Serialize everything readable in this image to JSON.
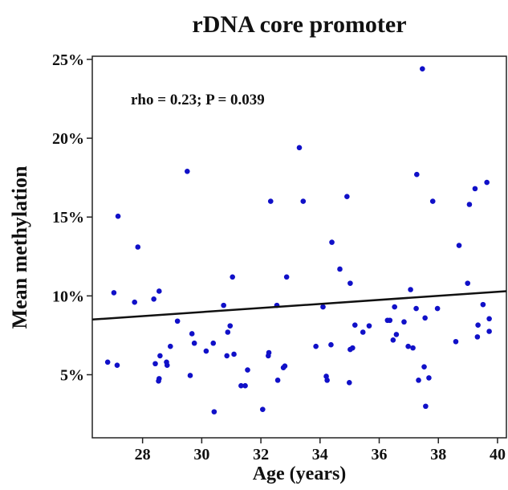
{
  "chart_data": {
    "type": "scatter",
    "title": "rDNA core promoter",
    "xlabel": "Age  (years)",
    "ylabel": "Mean methylation",
    "annotation": "rho = 0.23;  P = 0.039",
    "color": "#1010c8",
    "xlim": [
      26.3,
      40.3
    ],
    "ylim": [
      1,
      25.2
    ],
    "xticks": [
      28,
      30,
      32,
      34,
      36,
      38,
      40
    ],
    "yticks": [
      {
        "value": 5,
        "label": "5%"
      },
      {
        "value": 10,
        "label": "10%"
      },
      {
        "value": 15,
        "label": "15%"
      },
      {
        "value": 20,
        "label": "20%"
      },
      {
        "value": 25,
        "label": "25%"
      }
    ],
    "fit_line": {
      "x": [
        26.3,
        40.3
      ],
      "y": [
        8.5,
        10.3
      ]
    },
    "x": [
      26.82,
      27.03,
      27.14,
      27.17,
      27.84,
      27.73,
      28.38,
      28.43,
      28.54,
      28.56,
      28.56,
      28.59,
      28.81,
      28.83,
      28.94,
      29.18,
      29.51,
      29.61,
      29.67,
      29.75,
      30.15,
      30.39,
      30.42,
      30.74,
      30.85,
      30.88,
      30.96,
      31.04,
      31.09,
      31.33,
      31.47,
      31.55,
      32.06,
      32.27,
      32.33,
      32.25,
      32.54,
      32.57,
      32.76,
      32.81,
      32.87,
      33.3,
      33.43,
      33.86,
      34.1,
      34.21,
      34.24,
      34.37,
      34.4,
      34.67,
      34.91,
      34.99,
      35.02,
      35.02,
      35.1,
      35.18,
      35.45,
      35.66,
      36.28,
      36.36,
      36.47,
      36.52,
      36.58,
      36.84,
      36.98,
      37.06,
      37.14,
      37.25,
      37.27,
      37.33,
      37.46,
      37.52,
      37.55,
      37.57,
      37.68,
      37.81,
      37.97,
      38.59,
      38.7,
      38.99,
      39.05,
      39.24,
      39.32,
      39.34,
      39.51,
      39.64,
      39.72,
      39.72
    ],
    "values": [
      5.8,
      10.2,
      5.6,
      15.05,
      13.1,
      9.6,
      9.8,
      5.7,
      4.6,
      10.3,
      4.75,
      6.2,
      5.8,
      5.6,
      6.8,
      8.4,
      17.9,
      4.95,
      7.6,
      7.0,
      6.5,
      7.0,
      2.65,
      9.4,
      6.2,
      7.7,
      8.1,
      11.2,
      6.3,
      4.3,
      4.3,
      5.3,
      2.8,
      6.4,
      16.0,
      6.2,
      9.4,
      4.65,
      5.45,
      5.55,
      11.2,
      19.4,
      16.0,
      6.8,
      9.3,
      4.9,
      4.65,
      6.9,
      13.4,
      11.7,
      16.3,
      4.5,
      6.6,
      10.8,
      6.7,
      8.15,
      7.7,
      8.1,
      8.45,
      8.45,
      7.2,
      9.3,
      7.55,
      8.35,
      6.8,
      10.4,
      6.7,
      9.2,
      17.7,
      4.65,
      24.4,
      5.5,
      8.6,
      3.0,
      4.8,
      16.0,
      9.2,
      7.1,
      13.2,
      10.8,
      15.8,
      16.8,
      7.4,
      8.15,
      9.45,
      17.2,
      8.55,
      7.75
    ]
  }
}
